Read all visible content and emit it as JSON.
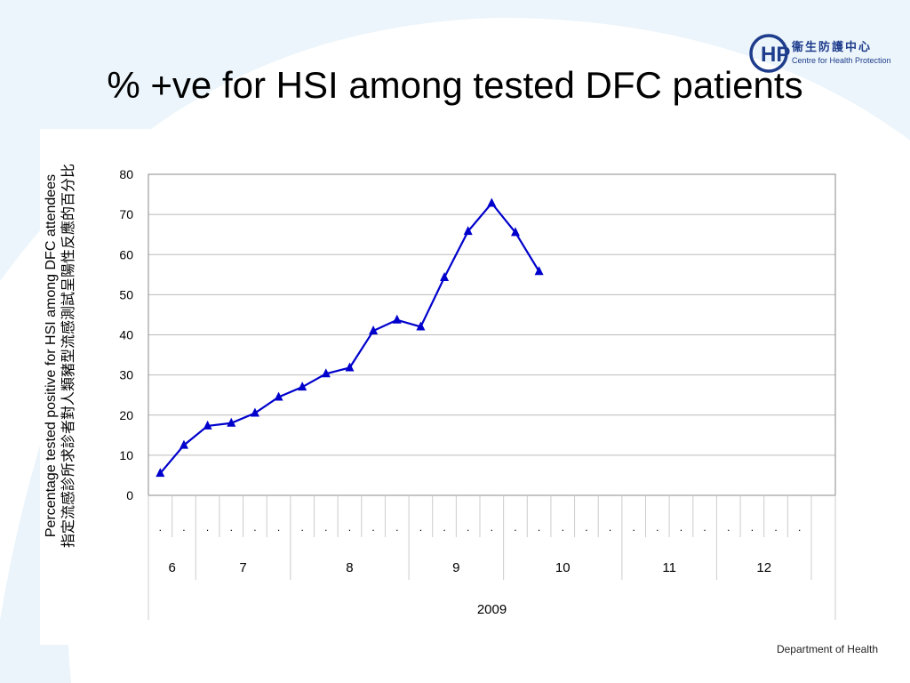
{
  "slide": {
    "title": "% +ve for HSI among tested DFC patients",
    "footer": "Department of Health"
  },
  "logo": {
    "mark": "CHP",
    "name_cn": "衞生防護中心",
    "name_en": "Centre for Health Protection",
    "color": "#1e3c8c"
  },
  "chart_data": {
    "type": "line",
    "title": "",
    "ylabel_en": "Percentage tested positive for HSI among DFC attendees",
    "ylabel_cn": "指定流感診所求診者對人類豬型流感測試呈陽性反應的百分比",
    "xlabel": "2009",
    "ylim": [
      0,
      80
    ],
    "yticks": [
      0,
      10,
      20,
      30,
      40,
      50,
      60,
      70,
      80
    ],
    "grid": true,
    "legend": "none",
    "series_color": "#0000cc",
    "weekly_tick_label": ".",
    "week_count": 28,
    "months": [
      {
        "label": "6",
        "weeks": 2
      },
      {
        "label": "7",
        "weeks": 4
      },
      {
        "label": "8",
        "weeks": 5
      },
      {
        "label": "9",
        "weeks": 4
      },
      {
        "label": "10",
        "weeks": 5
      },
      {
        "label": "11",
        "weeks": 4
      },
      {
        "label": "12",
        "weeks": 4
      }
    ],
    "series": [
      {
        "values": [
          5.5,
          12.5,
          17.3,
          18.0,
          20.5,
          24.5,
          27.0,
          30.3,
          31.8,
          41.0,
          43.7,
          42.0,
          54.3,
          65.8,
          72.8,
          65.5,
          55.8
        ]
      }
    ]
  }
}
